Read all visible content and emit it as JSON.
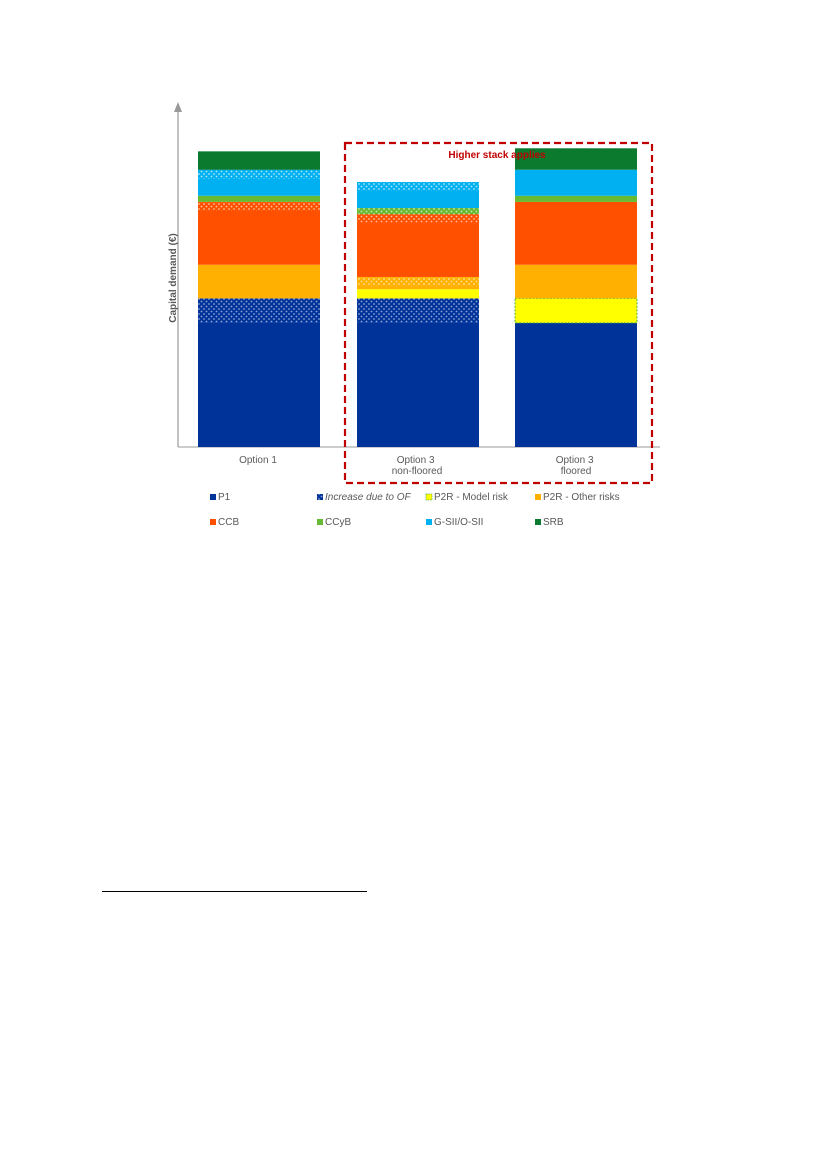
{
  "chart_data": {
    "type": "bar",
    "stacked": true,
    "title": "",
    "xlabel": "",
    "ylabel": "Capital demand (€)",
    "y_tick_labels": "none",
    "categories": [
      "Option 1",
      "Option 3\nnon-floored",
      "Option 3\nfloored"
    ],
    "series": [
      {
        "name": "P1",
        "color": "#003399",
        "pattern": "solid",
        "values": [
          40.5,
          40.5,
          40.5
        ]
      },
      {
        "name": "Increase due to OF",
        "color": "#003399",
        "pattern": "dotted",
        "values": [
          8,
          8,
          0
        ]
      },
      {
        "name": "P2R - Model risk",
        "color": "#FFFF00",
        "pattern": "solid-dashed-border",
        "values": [
          0,
          3,
          8
        ]
      },
      {
        "name": "P2R - Other risks",
        "color": "#FFB000",
        "pattern": "solid",
        "values": [
          11,
          4,
          11
        ]
      },
      {
        "name": "CCB",
        "color": "#FF5000",
        "pattern": "solid",
        "values": [
          20.5,
          20.5,
          20.5
        ]
      },
      {
        "name": "CCyB",
        "color": "#66BB33",
        "pattern": "solid",
        "values": [
          2,
          2,
          2
        ]
      },
      {
        "name": "G-SII/O-SII",
        "color": "#00B0F0",
        "pattern": "solid",
        "values": [
          8.5,
          8.5,
          8.5
        ]
      },
      {
        "name": "SRB",
        "color": "#0B7A2E",
        "pattern": "solid",
        "values": [
          6,
          0,
          7
        ]
      }
    ],
    "series_patterns_in_chart": {
      "Option 1": [
        "solid",
        "dotted",
        "solid",
        "solid",
        "dotted-top",
        "solid",
        "dotted-top",
        "solid"
      ],
      "Option 3\nnon-floored": [
        "solid",
        "dotted",
        "solid",
        "dotted-top",
        "dotted-top",
        "dotted",
        "dotted-top",
        "solid"
      ]
    },
    "ylim": [
      0,
      110
    ],
    "grid": false,
    "legend": {
      "position": "bottom",
      "columns": 4,
      "italic_entries": [
        "Increase due to OF"
      ]
    },
    "annotations": [
      {
        "text": "Higher stack applies",
        "color": "#C00000",
        "encloses_categories": [
          "Option 3\nnon-floored",
          "Option 3\nfloored"
        ],
        "style": "dashed-box"
      }
    ]
  }
}
